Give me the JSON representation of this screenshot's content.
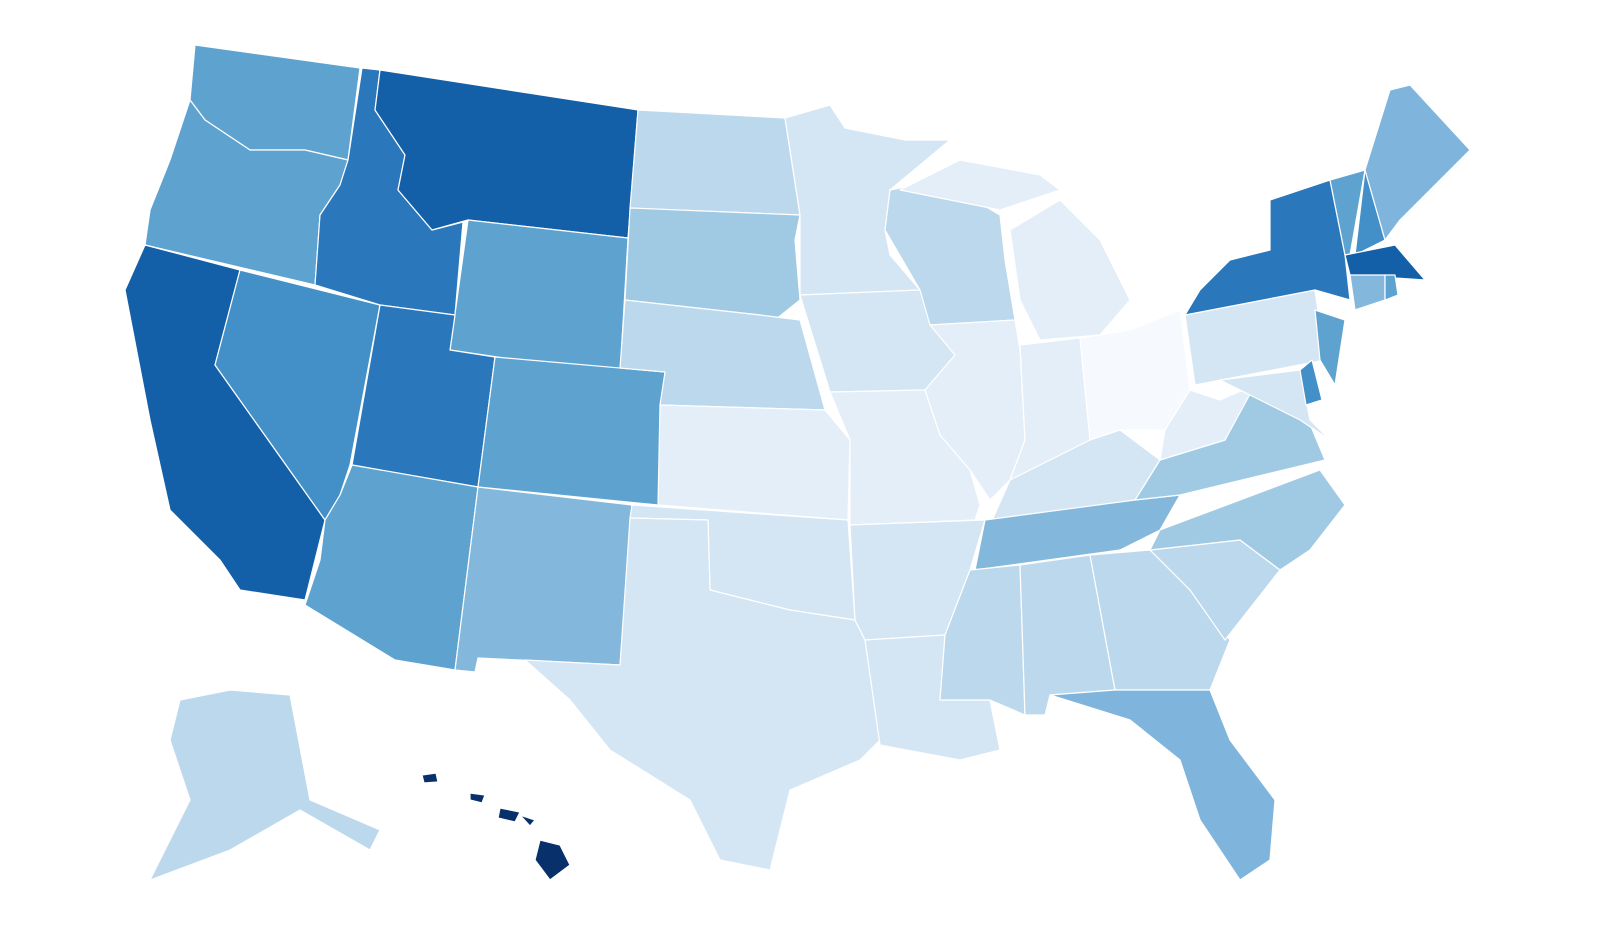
{
  "map": {
    "fills": [
      "#5ea3d0",
      "#5ea3d0",
      "#1460a8",
      "#4390c8",
      "#2a78bb",
      "#1460a8",
      "#5ea3d0",
      "#2a78bb",
      "#5ea3d0",
      "#5ea3d0",
      "#83b8dc",
      "#bcd8ec",
      "#a0cae4",
      "#bcd8ec",
      "#e3eef8",
      "#d4e5f4",
      "#d4e5f4",
      "#d4e5f4",
      "#d4e5f4",
      "#e3eef8",
      "#d4e5f4",
      "#d4e5f4",
      "#bcd8ec",
      "#e3eef8",
      "#e3eef8",
      "#e3eef8",
      "#f6faff",
      "#d4e5f4",
      "#83b8dc",
      "#bcd8ec",
      "#bcd8ec",
      "#bcd8ec",
      "#7fb5dc",
      "#bcd8ec",
      "#a0cae4",
      "#a0cae4",
      "#e3eef8",
      "#d4e5f4",
      "#2a78bb",
      "#5ea3d0",
      "#d4e5f4",
      "#4390c8",
      "#5ea3d0",
      "#4390c8",
      "#7fb5dc",
      "#1460a8",
      "#83b8dc",
      "#5ea3d0",
      "#bcd8ec",
      "#08306b"
    ]
  }
}
